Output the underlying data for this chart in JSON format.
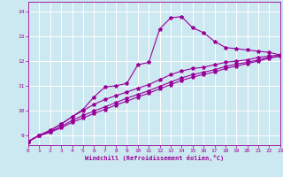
{
  "xlabel": "Windchill (Refroidissement éolien,°C)",
  "bg_color": "#cce8f0",
  "line_color": "#990099",
  "grid_color": "#ffffff",
  "xmin": 0,
  "xmax": 23,
  "ymin": 8.6,
  "ymax": 14.4,
  "yticks": [
    9,
    10,
    11,
    12,
    13,
    14
  ],
  "xticks": [
    0,
    1,
    2,
    3,
    4,
    5,
    6,
    7,
    8,
    9,
    10,
    11,
    12,
    13,
    14,
    15,
    16,
    17,
    18,
    19,
    20,
    21,
    22,
    23
  ],
  "line1_x": [
    0,
    1,
    2,
    3,
    4,
    5,
    6,
    7,
    8,
    9,
    10,
    11,
    12,
    13,
    14,
    15,
    16,
    17,
    18,
    19,
    20,
    21,
    22,
    23
  ],
  "line1_y": [
    8.75,
    9.0,
    9.2,
    9.45,
    9.75,
    10.05,
    10.55,
    10.95,
    11.0,
    11.1,
    11.85,
    11.95,
    13.3,
    13.75,
    13.8,
    13.35,
    13.15,
    12.8,
    12.55,
    12.5,
    12.45,
    12.4,
    12.35,
    12.25
  ],
  "line2_x": [
    0,
    1,
    2,
    3,
    4,
    5,
    6,
    7,
    8,
    9,
    10,
    11,
    12,
    13,
    14,
    15,
    16,
    17,
    18,
    19,
    20,
    21,
    22,
    23
  ],
  "line2_y": [
    8.75,
    9.0,
    9.2,
    9.45,
    9.75,
    10.0,
    10.25,
    10.45,
    10.6,
    10.75,
    10.9,
    11.05,
    11.25,
    11.45,
    11.6,
    11.7,
    11.75,
    11.85,
    11.95,
    12.0,
    12.05,
    12.15,
    12.2,
    12.25
  ],
  "line3_x": [
    0,
    1,
    2,
    3,
    4,
    5,
    6,
    7,
    8,
    9,
    10,
    11,
    12,
    13,
    14,
    15,
    16,
    17,
    18,
    19,
    20,
    21,
    22,
    23
  ],
  "line3_y": [
    8.75,
    9.0,
    9.15,
    9.35,
    9.6,
    9.8,
    9.98,
    10.15,
    10.32,
    10.5,
    10.65,
    10.8,
    10.98,
    11.15,
    11.32,
    11.45,
    11.55,
    11.65,
    11.78,
    11.88,
    11.95,
    12.05,
    12.15,
    12.2
  ],
  "line4_x": [
    0,
    1,
    2,
    3,
    4,
    5,
    6,
    7,
    8,
    9,
    10,
    11,
    12,
    13,
    14,
    15,
    16,
    17,
    18,
    19,
    20,
    21,
    22,
    23
  ],
  "line4_y": [
    8.75,
    8.98,
    9.12,
    9.3,
    9.52,
    9.7,
    9.88,
    10.05,
    10.22,
    10.38,
    10.55,
    10.7,
    10.88,
    11.05,
    11.22,
    11.35,
    11.46,
    11.56,
    11.7,
    11.8,
    11.9,
    12.0,
    12.12,
    12.2
  ]
}
